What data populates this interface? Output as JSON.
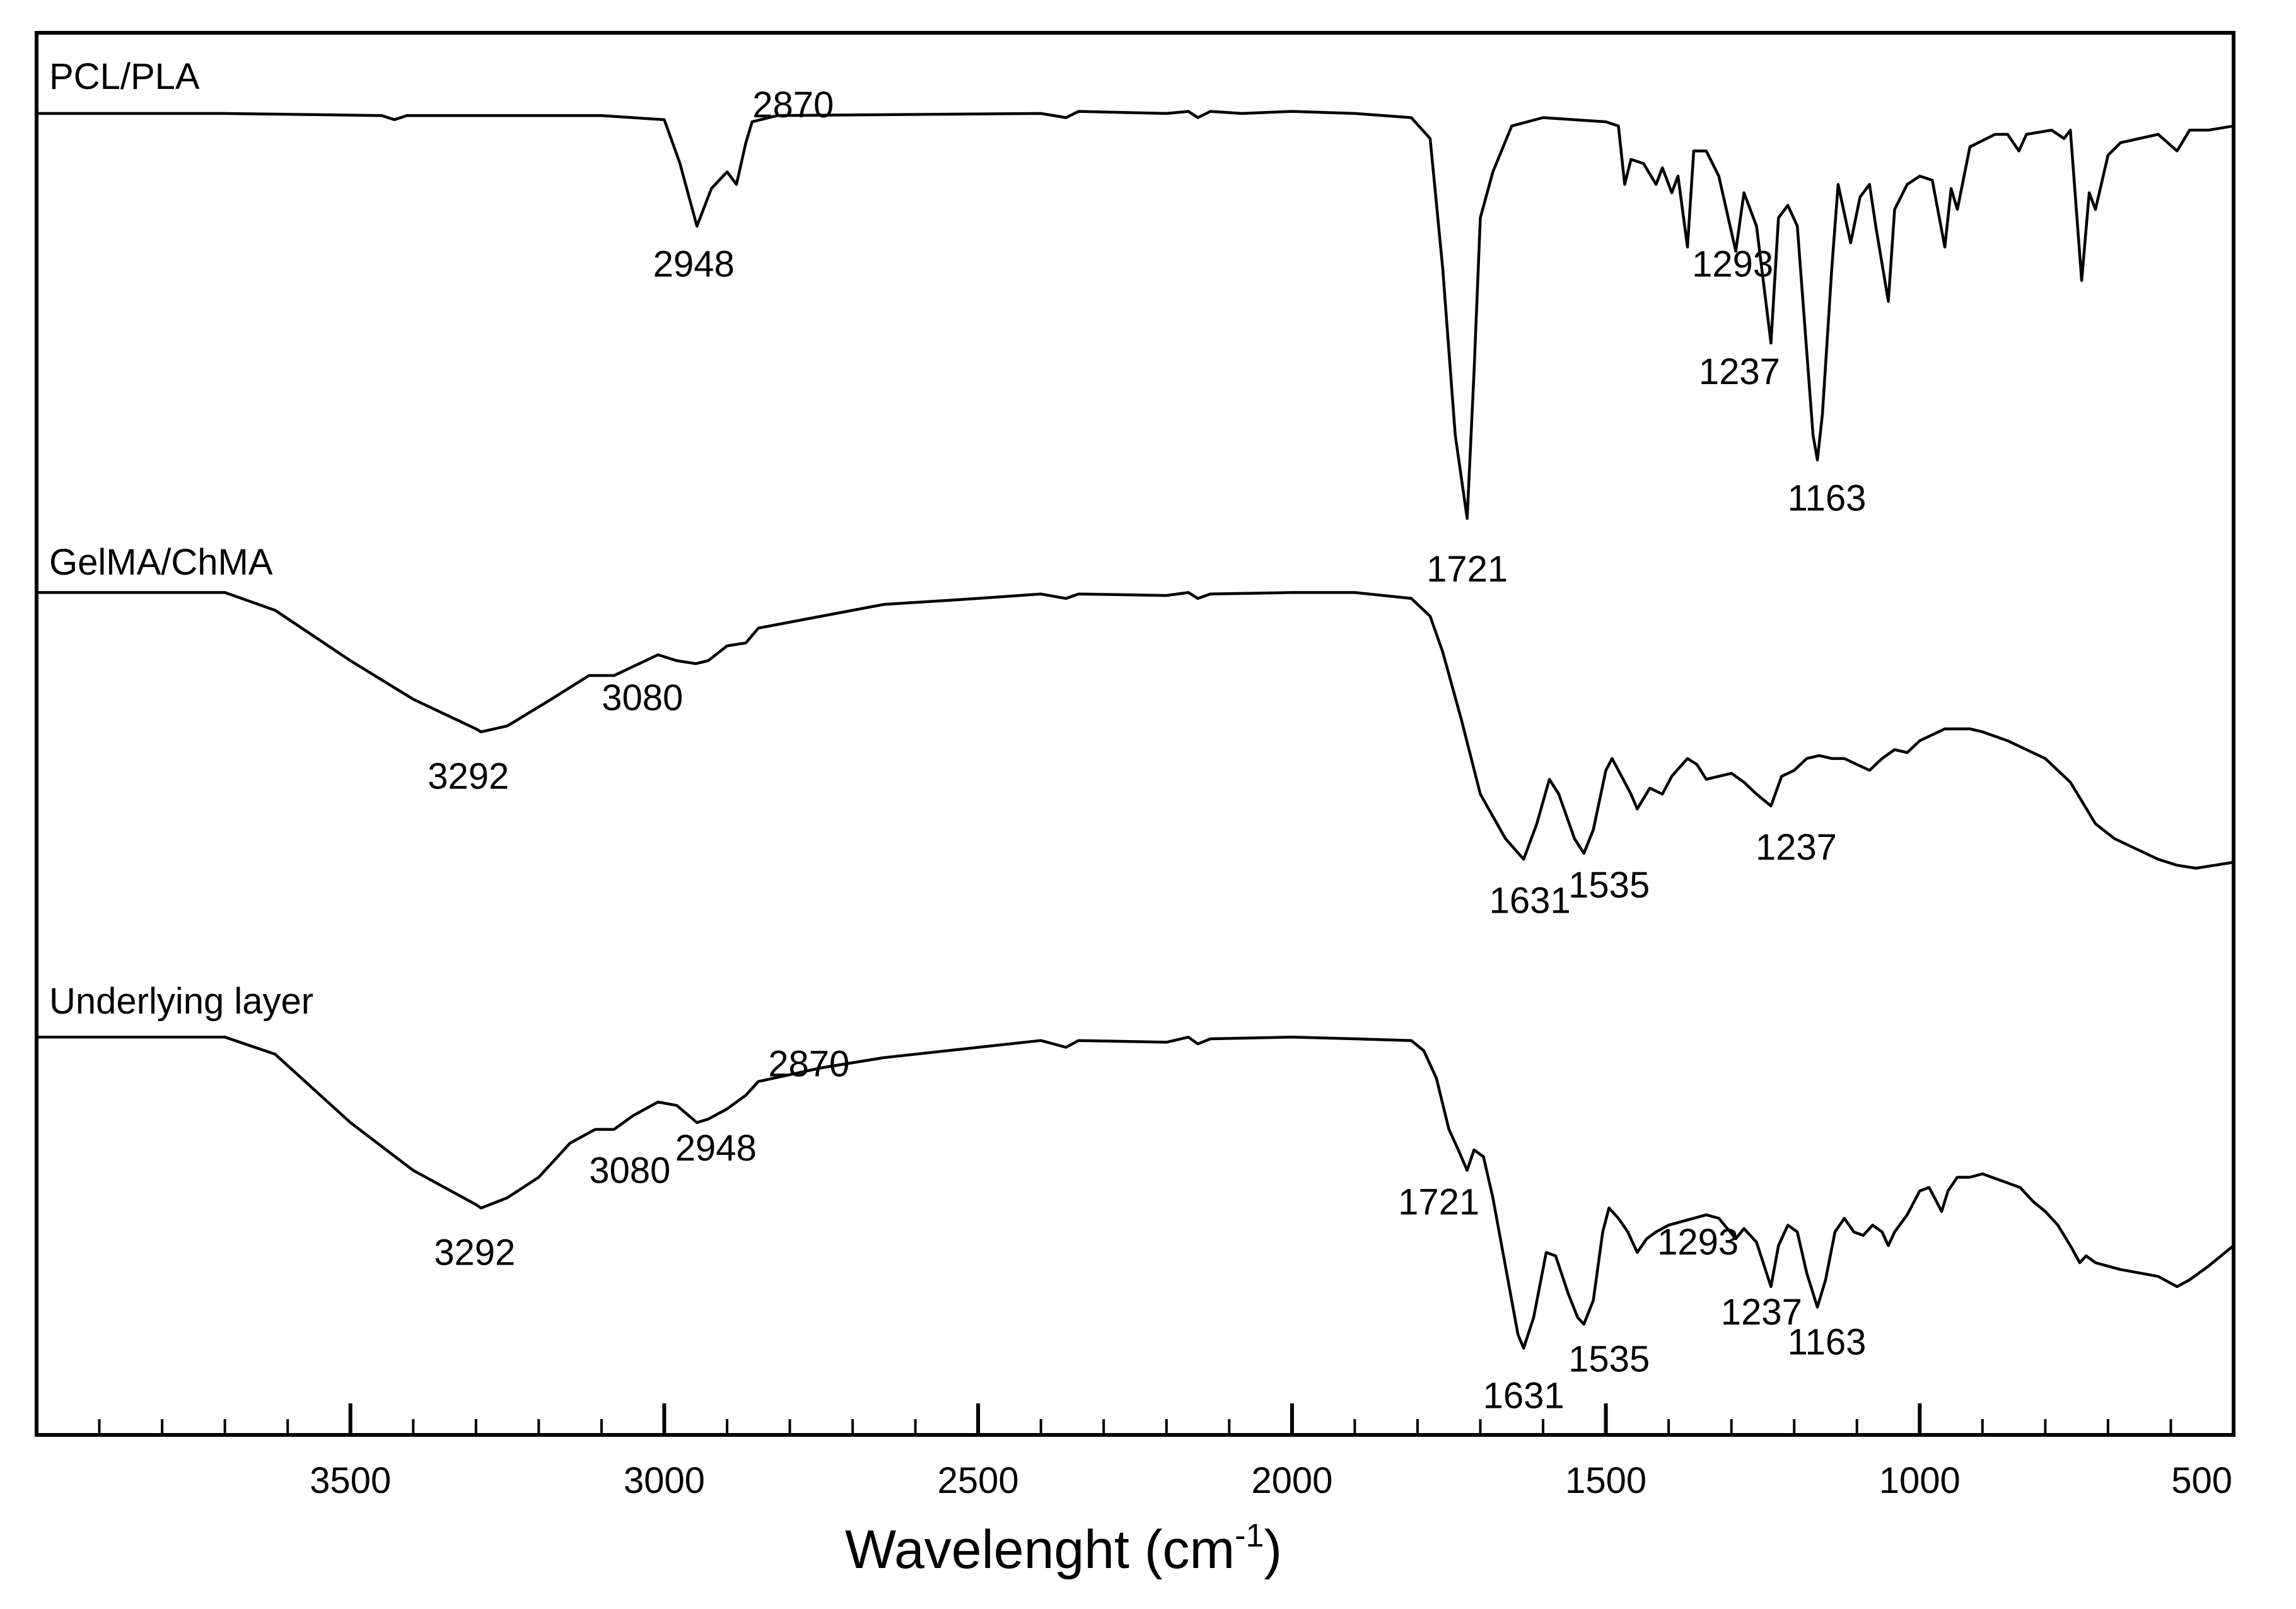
{
  "chart_data": {
    "type": "line",
    "title": "",
    "xlabel": "Wavelenght (cm",
    "xlabel_sup": "-1",
    "xlabel_close": ")",
    "ylabel": "",
    "xlim": [
      4000,
      500
    ],
    "x_reversed": true,
    "grid": false,
    "x_ticks": [
      3500,
      3000,
      2500,
      2000,
      1500,
      1000,
      500
    ],
    "x_tick_labels": [
      "3500",
      "3000",
      "2500",
      "2000",
      "1500",
      "1000",
      "500"
    ],
    "x_minor_tick_step": 100,
    "y_units": "transmittance (arbitrary, offset)",
    "series": [
      {
        "name": "PCL/PLA",
        "color": "#000000",
        "points": [
          [
            4000,
            0.97
          ],
          [
            3700,
            0.97
          ],
          [
            3450,
            0.965
          ],
          [
            3430,
            0.955
          ],
          [
            3410,
            0.965
          ],
          [
            3100,
            0.965
          ],
          [
            3000,
            0.955
          ],
          [
            2975,
            0.85
          ],
          [
            2948,
            0.7
          ],
          [
            2925,
            0.79
          ],
          [
            2900,
            0.83
          ],
          [
            2885,
            0.8
          ],
          [
            2870,
            0.9
          ],
          [
            2860,
            0.95
          ],
          [
            2820,
            0.965
          ],
          [
            2400,
            0.97
          ],
          [
            2360,
            0.96
          ],
          [
            2340,
            0.975
          ],
          [
            2200,
            0.97
          ],
          [
            2165,
            0.975
          ],
          [
            2150,
            0.96
          ],
          [
            2130,
            0.975
          ],
          [
            2080,
            0.97
          ],
          [
            2000,
            0.975
          ],
          [
            1900,
            0.97
          ],
          [
            1810,
            0.96
          ],
          [
            1780,
            0.91
          ],
          [
            1760,
            0.6
          ],
          [
            1740,
            0.2
          ],
          [
            1721,
            0.0
          ],
          [
            1710,
            0.35
          ],
          [
            1700,
            0.72
          ],
          [
            1680,
            0.83
          ],
          [
            1650,
            0.94
          ],
          [
            1600,
            0.96
          ],
          [
            1500,
            0.95
          ],
          [
            1480,
            0.94
          ],
          [
            1470,
            0.8
          ],
          [
            1460,
            0.86
          ],
          [
            1440,
            0.85
          ],
          [
            1420,
            0.8
          ],
          [
            1410,
            0.84
          ],
          [
            1395,
            0.78
          ],
          [
            1385,
            0.82
          ],
          [
            1370,
            0.65
          ],
          [
            1360,
            0.88
          ],
          [
            1340,
            0.88
          ],
          [
            1320,
            0.82
          ],
          [
            1293,
            0.64
          ],
          [
            1280,
            0.78
          ],
          [
            1260,
            0.7
          ],
          [
            1237,
            0.42
          ],
          [
            1225,
            0.72
          ],
          [
            1210,
            0.75
          ],
          [
            1195,
            0.7
          ],
          [
            1180,
            0.4
          ],
          [
            1170,
            0.2
          ],
          [
            1163,
            0.14
          ],
          [
            1155,
            0.25
          ],
          [
            1140,
            0.6
          ],
          [
            1130,
            0.8
          ],
          [
            1110,
            0.66
          ],
          [
            1095,
            0.77
          ],
          [
            1080,
            0.8
          ],
          [
            1070,
            0.7
          ],
          [
            1050,
            0.52
          ],
          [
            1040,
            0.74
          ],
          [
            1020,
            0.8
          ],
          [
            1000,
            0.82
          ],
          [
            980,
            0.81
          ],
          [
            960,
            0.65
          ],
          [
            950,
            0.79
          ],
          [
            940,
            0.74
          ],
          [
            920,
            0.89
          ],
          [
            880,
            0.92
          ],
          [
            860,
            0.92
          ],
          [
            842,
            0.88
          ],
          [
            830,
            0.92
          ],
          [
            790,
            0.93
          ],
          [
            770,
            0.91
          ],
          [
            760,
            0.93
          ],
          [
            742,
            0.57
          ],
          [
            730,
            0.78
          ],
          [
            720,
            0.74
          ],
          [
            700,
            0.87
          ],
          [
            680,
            0.9
          ],
          [
            620,
            0.92
          ],
          [
            590,
            0.88
          ],
          [
            570,
            0.93
          ],
          [
            540,
            0.93
          ],
          [
            500,
            0.94
          ]
        ]
      },
      {
        "name": "GelMA/ChMA",
        "color": "#000000",
        "points": [
          [
            4000,
            0.98
          ],
          [
            3700,
            0.98
          ],
          [
            3620,
            0.92
          ],
          [
            3500,
            0.75
          ],
          [
            3400,
            0.62
          ],
          [
            3300,
            0.52
          ],
          [
            3292,
            0.51
          ],
          [
            3250,
            0.53
          ],
          [
            3180,
            0.62
          ],
          [
            3120,
            0.7
          ],
          [
            3080,
            0.7
          ],
          [
            3050,
            0.73
          ],
          [
            3010,
            0.77
          ],
          [
            2980,
            0.75
          ],
          [
            2950,
            0.74
          ],
          [
            2930,
            0.75
          ],
          [
            2900,
            0.8
          ],
          [
            2870,
            0.81
          ],
          [
            2850,
            0.86
          ],
          [
            2750,
            0.9
          ],
          [
            2650,
            0.94
          ],
          [
            2500,
            0.96
          ],
          [
            2400,
            0.975
          ],
          [
            2360,
            0.96
          ],
          [
            2340,
            0.975
          ],
          [
            2200,
            0.97
          ],
          [
            2165,
            0.98
          ],
          [
            2150,
            0.96
          ],
          [
            2130,
            0.975
          ],
          [
            2000,
            0.98
          ],
          [
            1900,
            0.98
          ],
          [
            1810,
            0.96
          ],
          [
            1780,
            0.9
          ],
          [
            1760,
            0.78
          ],
          [
            1730,
            0.55
          ],
          [
            1700,
            0.3
          ],
          [
            1660,
            0.15
          ],
          [
            1631,
            0.08
          ],
          [
            1610,
            0.2
          ],
          [
            1590,
            0.35
          ],
          [
            1575,
            0.3
          ],
          [
            1550,
            0.15
          ],
          [
            1535,
            0.1
          ],
          [
            1520,
            0.18
          ],
          [
            1500,
            0.38
          ],
          [
            1490,
            0.42
          ],
          [
            1475,
            0.36
          ],
          [
            1460,
            0.3
          ],
          [
            1450,
            0.25
          ],
          [
            1430,
            0.32
          ],
          [
            1410,
            0.3
          ],
          [
            1395,
            0.36
          ],
          [
            1370,
            0.42
          ],
          [
            1355,
            0.4
          ],
          [
            1340,
            0.35
          ],
          [
            1320,
            0.36
          ],
          [
            1300,
            0.37
          ],
          [
            1280,
            0.34
          ],
          [
            1260,
            0.3
          ],
          [
            1237,
            0.26
          ],
          [
            1220,
            0.36
          ],
          [
            1200,
            0.38
          ],
          [
            1180,
            0.42
          ],
          [
            1160,
            0.43
          ],
          [
            1140,
            0.42
          ],
          [
            1120,
            0.42
          ],
          [
            1100,
            0.4
          ],
          [
            1080,
            0.38
          ],
          [
            1060,
            0.42
          ],
          [
            1040,
            0.45
          ],
          [
            1020,
            0.44
          ],
          [
            1000,
            0.48
          ],
          [
            960,
            0.52
          ],
          [
            920,
            0.52
          ],
          [
            900,
            0.51
          ],
          [
            860,
            0.48
          ],
          [
            800,
            0.42
          ],
          [
            760,
            0.34
          ],
          [
            720,
            0.2
          ],
          [
            690,
            0.15
          ],
          [
            660,
            0.12
          ],
          [
            620,
            0.08
          ],
          [
            590,
            0.06
          ],
          [
            560,
            0.05
          ],
          [
            530,
            0.06
          ],
          [
            500,
            0.07
          ]
        ]
      },
      {
        "name": "Underlying layer",
        "color": "#000000",
        "points": [
          [
            4000,
            0.97
          ],
          [
            3700,
            0.97
          ],
          [
            3620,
            0.92
          ],
          [
            3500,
            0.72
          ],
          [
            3400,
            0.58
          ],
          [
            3300,
            0.48
          ],
          [
            3292,
            0.47
          ],
          [
            3250,
            0.5
          ],
          [
            3200,
            0.56
          ],
          [
            3150,
            0.66
          ],
          [
            3110,
            0.7
          ],
          [
            3080,
            0.7
          ],
          [
            3050,
            0.74
          ],
          [
            3010,
            0.78
          ],
          [
            2980,
            0.77
          ],
          [
            2948,
            0.72
          ],
          [
            2930,
            0.73
          ],
          [
            2900,
            0.76
          ],
          [
            2870,
            0.8
          ],
          [
            2850,
            0.84
          ],
          [
            2750,
            0.88
          ],
          [
            2650,
            0.91
          ],
          [
            2500,
            0.94
          ],
          [
            2400,
            0.96
          ],
          [
            2360,
            0.94
          ],
          [
            2340,
            0.96
          ],
          [
            2200,
            0.955
          ],
          [
            2165,
            0.97
          ],
          [
            2150,
            0.95
          ],
          [
            2130,
            0.965
          ],
          [
            2000,
            0.97
          ],
          [
            1900,
            0.965
          ],
          [
            1810,
            0.96
          ],
          [
            1790,
            0.93
          ],
          [
            1770,
            0.85
          ],
          [
            1750,
            0.7
          ],
          [
            1735,
            0.64
          ],
          [
            1721,
            0.58
          ],
          [
            1710,
            0.64
          ],
          [
            1695,
            0.62
          ],
          [
            1680,
            0.5
          ],
          [
            1660,
            0.3
          ],
          [
            1640,
            0.1
          ],
          [
            1631,
            0.06
          ],
          [
            1615,
            0.15
          ],
          [
            1595,
            0.34
          ],
          [
            1580,
            0.33
          ],
          [
            1560,
            0.22
          ],
          [
            1545,
            0.15
          ],
          [
            1535,
            0.13
          ],
          [
            1520,
            0.2
          ],
          [
            1505,
            0.4
          ],
          [
            1495,
            0.47
          ],
          [
            1480,
            0.44
          ],
          [
            1465,
            0.4
          ],
          [
            1450,
            0.34
          ],
          [
            1435,
            0.38
          ],
          [
            1420,
            0.4
          ],
          [
            1400,
            0.42
          ],
          [
            1380,
            0.43
          ],
          [
            1360,
            0.44
          ],
          [
            1340,
            0.45
          ],
          [
            1320,
            0.44
          ],
          [
            1293,
            0.38
          ],
          [
            1280,
            0.41
          ],
          [
            1260,
            0.37
          ],
          [
            1237,
            0.24
          ],
          [
            1225,
            0.36
          ],
          [
            1210,
            0.42
          ],
          [
            1195,
            0.4
          ],
          [
            1180,
            0.28
          ],
          [
            1163,
            0.18
          ],
          [
            1150,
            0.26
          ],
          [
            1135,
            0.4
          ],
          [
            1120,
            0.44
          ],
          [
            1105,
            0.4
          ],
          [
            1090,
            0.39
          ],
          [
            1075,
            0.42
          ],
          [
            1060,
            0.4
          ],
          [
            1050,
            0.36
          ],
          [
            1040,
            0.4
          ],
          [
            1020,
            0.45
          ],
          [
            1000,
            0.52
          ],
          [
            985,
            0.53
          ],
          [
            965,
            0.46
          ],
          [
            955,
            0.52
          ],
          [
            940,
            0.56
          ],
          [
            920,
            0.56
          ],
          [
            900,
            0.57
          ],
          [
            870,
            0.55
          ],
          [
            840,
            0.53
          ],
          [
            820,
            0.49
          ],
          [
            800,
            0.46
          ],
          [
            780,
            0.42
          ],
          [
            760,
            0.36
          ],
          [
            745,
            0.31
          ],
          [
            735,
            0.33
          ],
          [
            720,
            0.31
          ],
          [
            700,
            0.3
          ],
          [
            680,
            0.29
          ],
          [
            650,
            0.28
          ],
          [
            620,
            0.27
          ],
          [
            590,
            0.24
          ],
          [
            570,
            0.26
          ],
          [
            540,
            0.3
          ],
          [
            500,
            0.36
          ]
        ]
      }
    ],
    "peak_annotations": [
      {
        "series": 0,
        "text": "2948",
        "x": 2948
      },
      {
        "series": 0,
        "text": "2870",
        "x": 2870
      },
      {
        "series": 0,
        "text": "1721",
        "x": 1721
      },
      {
        "series": 0,
        "text": "1293",
        "x": 1293
      },
      {
        "series": 0,
        "text": "1237",
        "x": 1237
      },
      {
        "series": 0,
        "text": "1163",
        "x": 1163
      },
      {
        "series": 1,
        "text": "3292",
        "x": 3292
      },
      {
        "series": 1,
        "text": "3080",
        "x": 3080
      },
      {
        "series": 1,
        "text": "1631",
        "x": 1631
      },
      {
        "series": 1,
        "text": "1535",
        "x": 1535
      },
      {
        "series": 1,
        "text": "1237",
        "x": 1237
      },
      {
        "series": 2,
        "text": "3292",
        "x": 3292
      },
      {
        "series": 2,
        "text": "3080",
        "x": 3080
      },
      {
        "series": 2,
        "text": "2948",
        "x": 2948
      },
      {
        "series": 2,
        "text": "2870",
        "x": 2870
      },
      {
        "series": 2,
        "text": "1721",
        "x": 1721
      },
      {
        "series": 2,
        "text": "1631",
        "x": 1631
      },
      {
        "series": 2,
        "text": "1535",
        "x": 1535
      },
      {
        "series": 2,
        "text": "1293",
        "x": 1293
      },
      {
        "series": 2,
        "text": "1237",
        "x": 1237
      },
      {
        "series": 2,
        "text": "1163",
        "x": 1163
      }
    ]
  }
}
